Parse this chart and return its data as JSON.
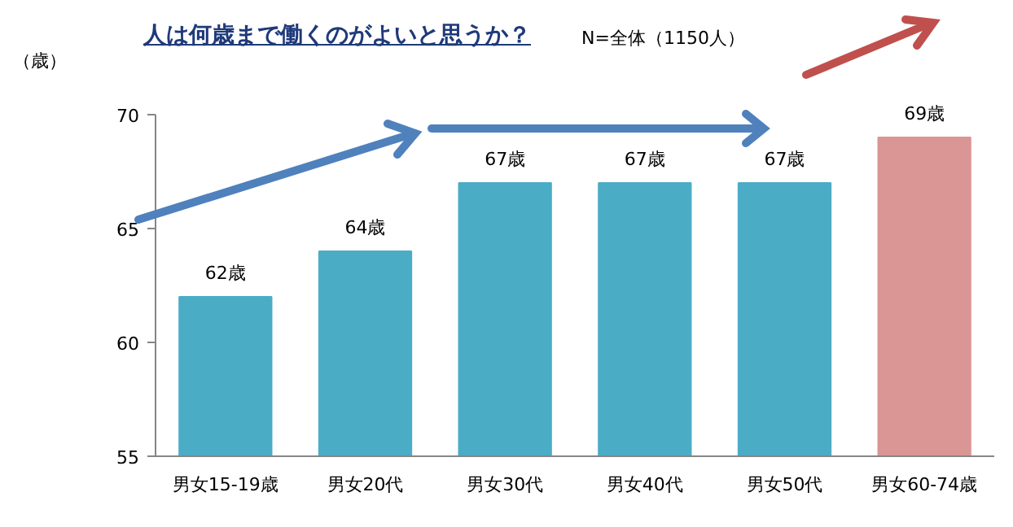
{
  "chart_data": {
    "type": "bar",
    "title": "人は何歳まで働くのがよいと思うか？",
    "subtitle": "N=全体（1150人）",
    "ylabel": "（歳）",
    "categories": [
      "男女15-19歳",
      "男女20代",
      "男女30代",
      "男女40代",
      "男女50代",
      "男女60-74歳"
    ],
    "values": [
      62,
      64,
      67,
      67,
      67,
      69
    ],
    "value_labels": [
      "62歳",
      "64歳",
      "67歳",
      "67歳",
      "67歳",
      "69歳"
    ],
    "colors": [
      "#4bacc6",
      "#4bacc6",
      "#4bacc6",
      "#4bacc6",
      "#4bacc6",
      "#d99694"
    ],
    "ylim": [
      55,
      70
    ],
    "yticks": [
      55,
      60,
      65,
      70
    ],
    "grid": false
  }
}
